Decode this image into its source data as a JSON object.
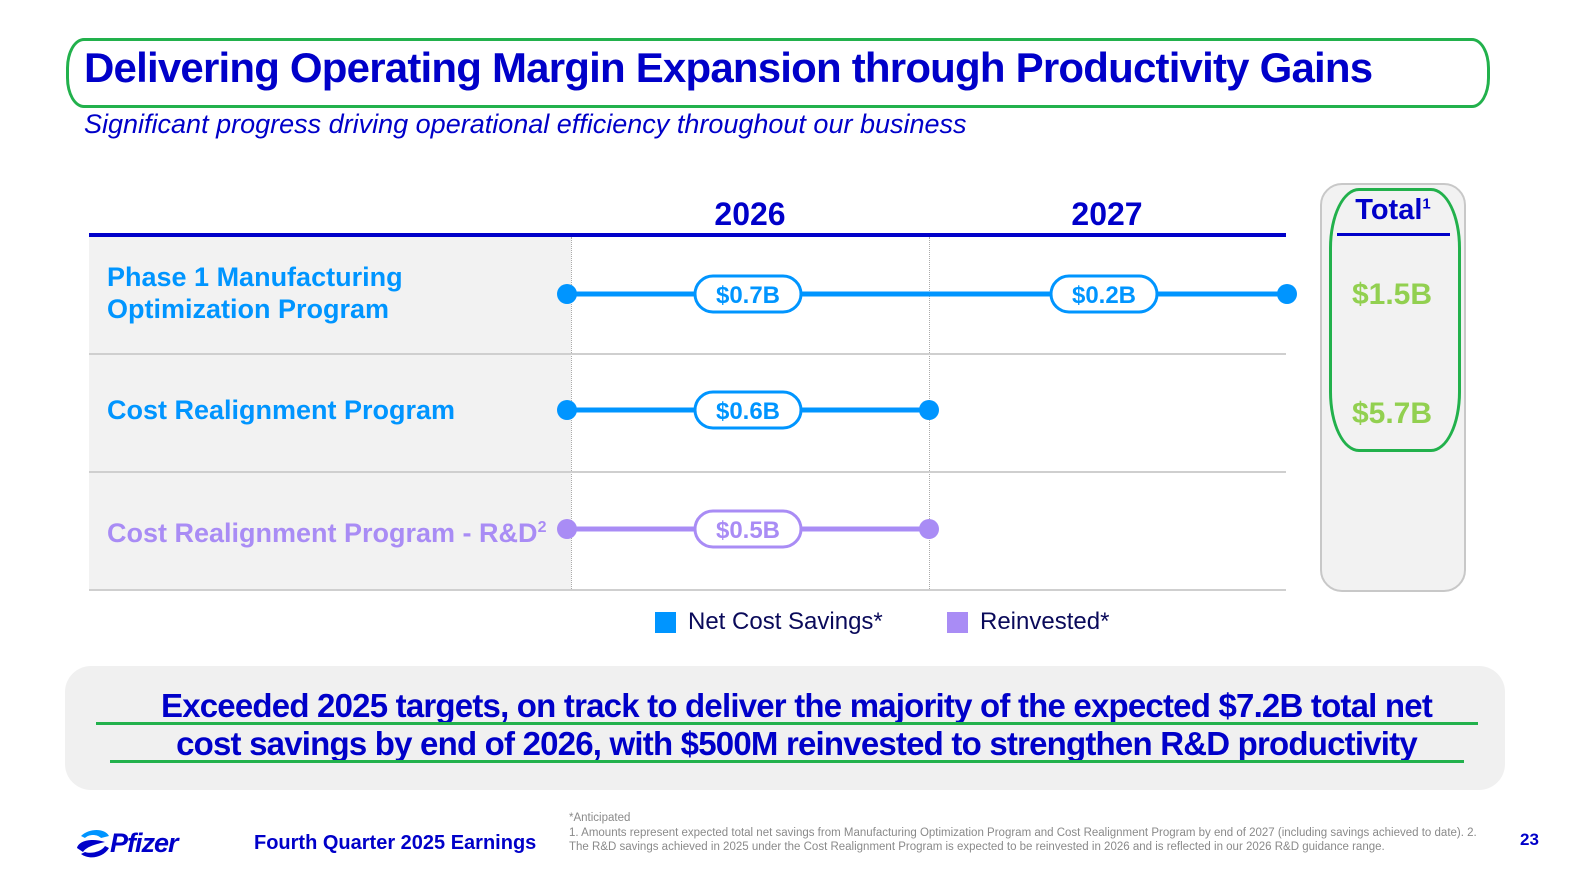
{
  "slide": {
    "title": "Delivering Operating Margin Expansion through Productivity Gains",
    "subtitle": "Significant progress driving operational efficiency throughout our business"
  },
  "colors": {
    "title_blue": "#0000c9",
    "net_cost_savings": "#0095ff",
    "reinvested": "#a98cf5",
    "total_green": "#92d050",
    "annotation_green": "#22b14c"
  },
  "chart_data": {
    "type": "timeline",
    "periods": [
      "2026",
      "2027"
    ],
    "rows": [
      {
        "label_line1": "Phase 1 Manufacturing",
        "label_line2": "Optimization Program",
        "category": "Net Cost Savings*",
        "start": "2026-start",
        "end": "2027-end",
        "segments": [
          {
            "period": "2026",
            "value": "$0.7B",
            "amount_billions": 0.7
          },
          {
            "period": "2027",
            "value": "$0.2B",
            "amount_billions": 0.2
          }
        ],
        "total": "$1.5B"
      },
      {
        "label_line1": "Cost Realignment Program",
        "label_line2": "",
        "category": "Net Cost Savings*",
        "start": "2026-start",
        "end": "2026-end",
        "segments": [
          {
            "period": "2026",
            "value": "$0.6B",
            "amount_billions": 0.6
          }
        ],
        "total": "$5.7B"
      },
      {
        "label_line1": "Cost Realignment Program - R&D",
        "label_sup": "2",
        "label_line2": "",
        "category": "Reinvested*",
        "start": "2026-start",
        "end": "2026-end",
        "segments": [
          {
            "period": "2026",
            "value": "$0.5B",
            "amount_billions": 0.5
          }
        ],
        "total": ""
      }
    ],
    "total_header": "Total",
    "total_header_sup": "1",
    "legend": [
      {
        "label": "Net Cost Savings*",
        "color": "#0095ff"
      },
      {
        "label": "Reinvested*",
        "color": "#a98cf5"
      }
    ],
    "legend_position": "bottom"
  },
  "callout": {
    "line1": "Exceeded 2025 targets, on track to deliver the majority of the expected $7.2B total net",
    "line2": "cost savings by end of 2026, with $500M reinvested to strengthen R&D productivity"
  },
  "footer": {
    "logo_text": "Pfizer",
    "title": "Fourth Quarter 2025 Earnings",
    "footnote_star": "*Anticipated",
    "footnote_1": "1.  Amounts represent expected total net savings from Manufacturing Optimization Program and Cost Realignment Program by end of 2027 (including savings achieved to date). 2. The R&D savings achieved in 2025 under the Cost Realignment Program is expected to be reinvested in 2026 and is reflected in our 2026 R&D guidance range.",
    "page_number": "23"
  }
}
